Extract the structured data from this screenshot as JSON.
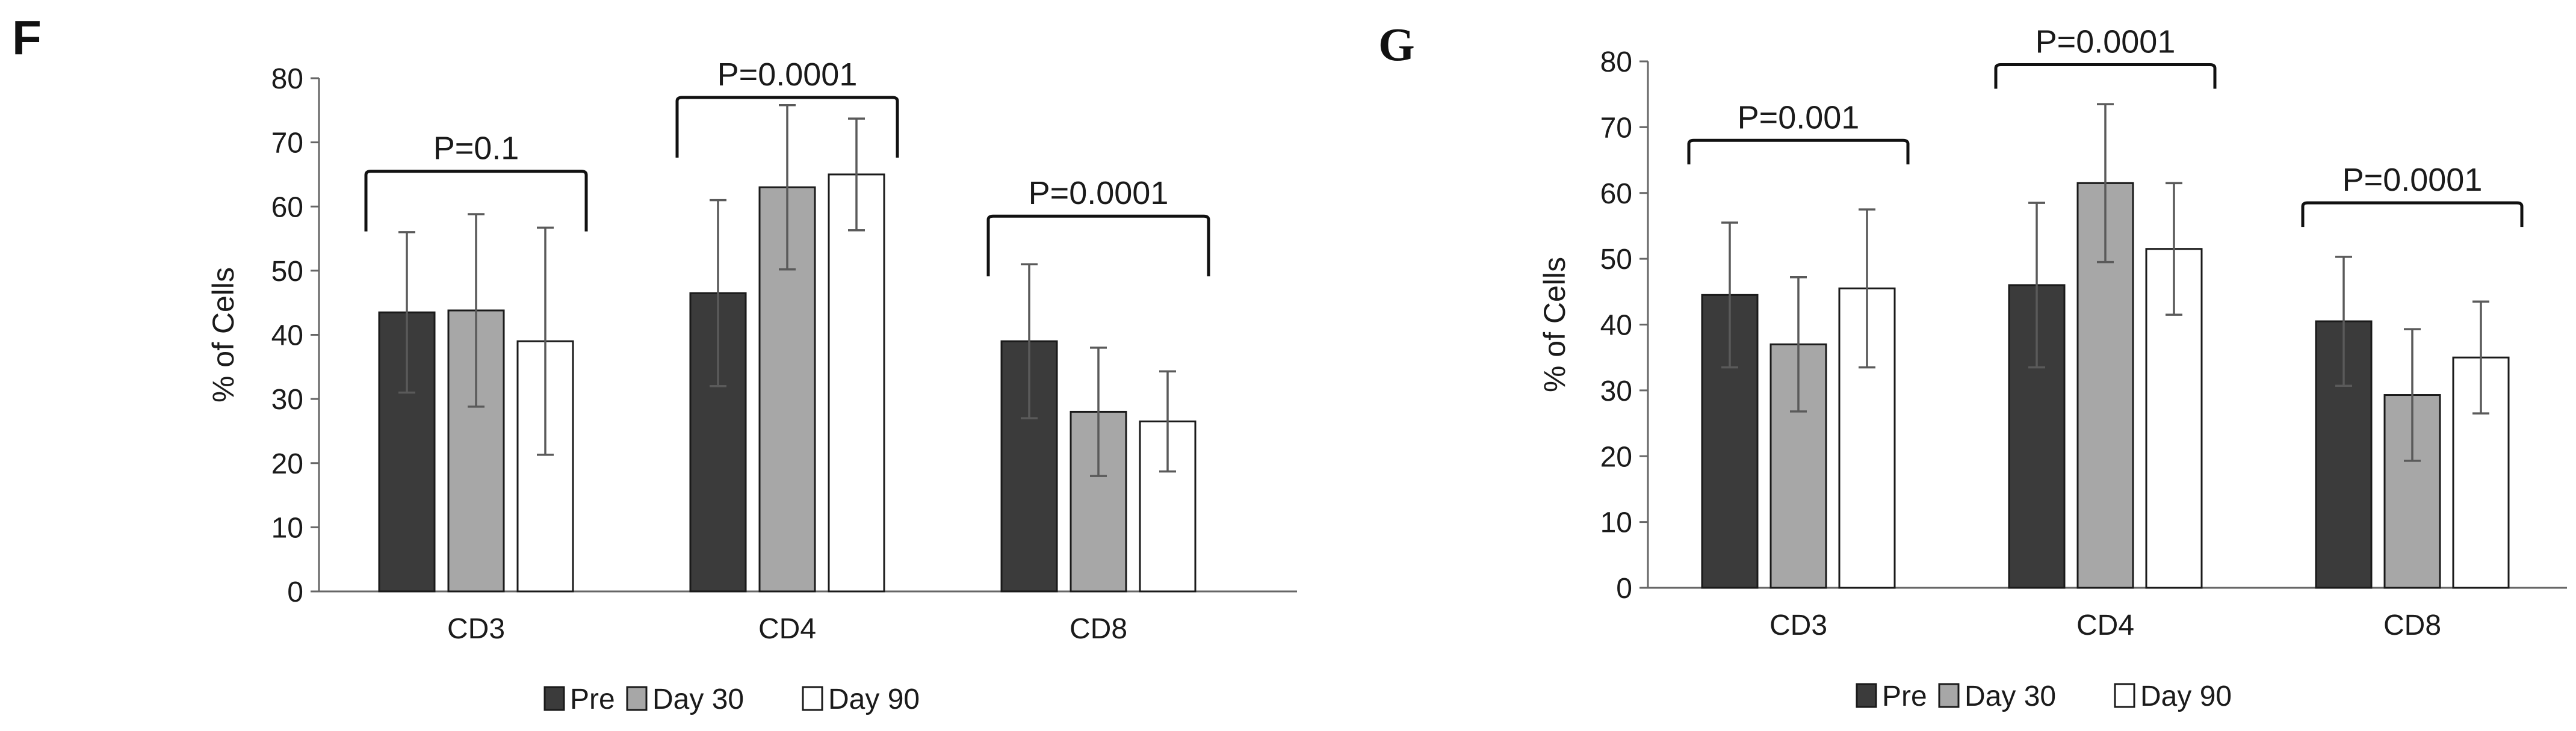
{
  "colors": {
    "pre": "#3b3b3b",
    "day30": "#a7a7a7",
    "day90": "#ffffff",
    "stroke": "#1a1a1a",
    "error": "#5a5a5a",
    "text": "#1a1a1a"
  },
  "chart_data": [
    {
      "panel": "F",
      "type": "bar",
      "ylabel": "% of Cells",
      "ylim": [
        0,
        80
      ],
      "yticks": [
        0,
        10,
        20,
        30,
        40,
        50,
        60,
        70,
        80
      ],
      "categories": [
        "CD3",
        "CD4",
        "CD8"
      ],
      "series": [
        {
          "name": "Pre",
          "values": [
            43.5,
            46.5,
            39
          ],
          "errors": [
            12.5,
            14.5,
            12
          ]
        },
        {
          "name": "Day 30",
          "values": [
            43.8,
            63,
            28
          ],
          "errors": [
            15,
            12.8,
            10
          ]
        },
        {
          "name": "Day 90",
          "values": [
            39,
            65,
            26.5
          ],
          "errors": [
            17.7,
            8.7,
            7.8
          ]
        }
      ],
      "annotations": [
        {
          "category": "CD3",
          "text": "P=0.1",
          "level": 65.5
        },
        {
          "category": "CD4",
          "text": "P=0.0001",
          "level": 77
        },
        {
          "category": "CD8",
          "text": "P=0.0001",
          "level": 58.5
        }
      ],
      "legend": [
        "Pre",
        "Day 30",
        "Day 90"
      ]
    },
    {
      "panel": "G",
      "type": "bar",
      "ylabel": "% of Cells",
      "ylim": [
        0,
        80
      ],
      "yticks": [
        0,
        10,
        20,
        30,
        40,
        50,
        60,
        70,
        80
      ],
      "categories": [
        "CD3",
        "CD4",
        "CD8"
      ],
      "series": [
        {
          "name": "Pre",
          "values": [
            44.5,
            46,
            40.5
          ],
          "errors": [
            11,
            12.5,
            9.8
          ]
        },
        {
          "name": "Day 30",
          "values": [
            37,
            61.5,
            29.3
          ],
          "errors": [
            10.2,
            12,
            10
          ]
        },
        {
          "name": "Day 90",
          "values": [
            45.5,
            51.5,
            35
          ],
          "errors": [
            12,
            10,
            8.5
          ]
        }
      ],
      "annotations": [
        {
          "category": "CD3",
          "text": "P=0.001",
          "level": 68
        },
        {
          "category": "CD4",
          "text": "P=0.0001",
          "level": 79.5
        },
        {
          "category": "CD8",
          "text": "P=0.0001",
          "level": 58.5
        }
      ],
      "legend": [
        "Pre",
        "Day 30",
        "Day 90"
      ]
    }
  ]
}
